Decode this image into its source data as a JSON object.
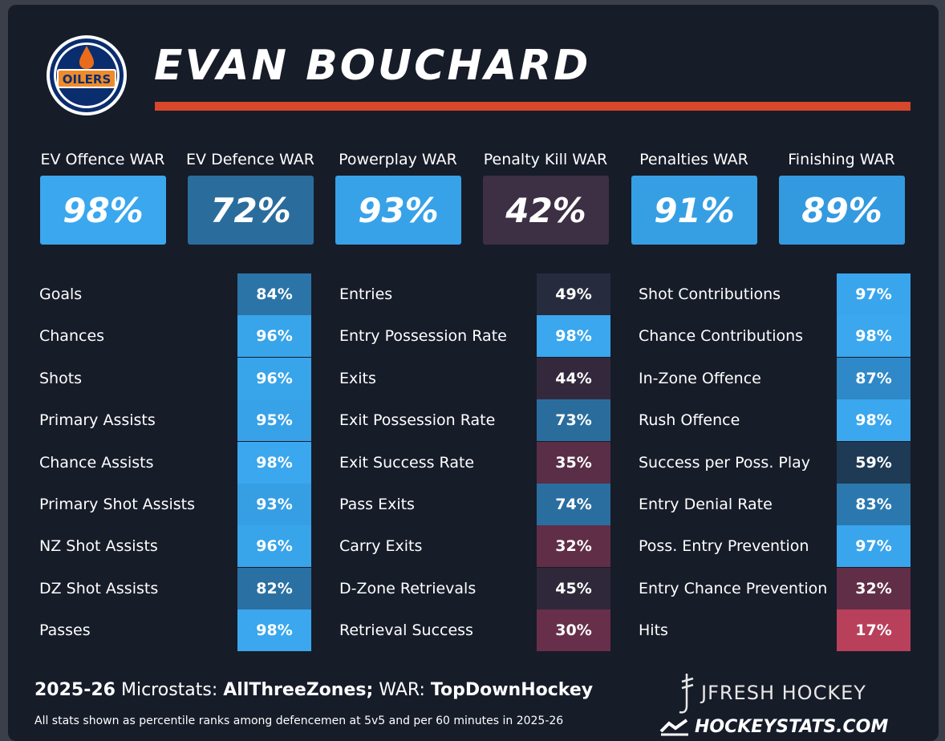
{
  "player": {
    "name": "EVAN BOUCHARD"
  },
  "team": {
    "logo_text": "OILERS"
  },
  "colors": {
    "accent_rule": "#d6472b",
    "scale_high": "#3aa7ee",
    "scale_high2": "#2f8fd0",
    "scale_mid": "#2a6d9c",
    "scale_midlow": "#1e3a55",
    "scale_neutral": "#262c3d",
    "scale_low": "#4a3044",
    "scale_lower": "#6a2e48",
    "scale_lowest": "#b8405b"
  },
  "war": [
    {
      "label": "EV Offence WAR",
      "value": "98%"
    },
    {
      "label": "EV Defence WAR",
      "value": "72%"
    },
    {
      "label": "Powerplay WAR",
      "value": "93%"
    },
    {
      "label": "Penalty Kill WAR",
      "value": "42%"
    },
    {
      "label": "Penalties WAR",
      "value": "91%"
    },
    {
      "label": "Finishing WAR",
      "value": "89%"
    }
  ],
  "columns": [
    {
      "stats": [
        {
          "label": "Goals",
          "value": "84%"
        },
        {
          "label": "Chances",
          "value": "96%"
        },
        {
          "label": "Shots",
          "value": "96%"
        },
        {
          "label": "Primary Assists",
          "value": "95%"
        },
        {
          "label": "Chance Assists",
          "value": "98%"
        },
        {
          "label": "Primary Shot Assists",
          "value": "93%"
        },
        {
          "label": "NZ Shot Assists",
          "value": "96%"
        },
        {
          "label": "DZ Shot Assists",
          "value": "82%"
        },
        {
          "label": "Passes",
          "value": "98%"
        }
      ]
    },
    {
      "stats": [
        {
          "label": "Entries",
          "value": "49%"
        },
        {
          "label": "Entry Possession Rate",
          "value": "98%"
        },
        {
          "label": "Exits",
          "value": "44%"
        },
        {
          "label": "Exit Possession Rate",
          "value": "73%"
        },
        {
          "label": "Exit Success Rate",
          "value": "35%"
        },
        {
          "label": "Pass Exits",
          "value": "74%"
        },
        {
          "label": "Carry Exits",
          "value": "32%"
        },
        {
          "label": "D-Zone Retrievals",
          "value": "45%"
        },
        {
          "label": "Retrieval Success",
          "value": "30%"
        }
      ]
    },
    {
      "stats": [
        {
          "label": "Shot Contributions",
          "value": "97%"
        },
        {
          "label": "Chance Contributions",
          "value": "98%"
        },
        {
          "label": "In-Zone Offence",
          "value": "87%"
        },
        {
          "label": "Rush Offence",
          "value": "98%"
        },
        {
          "label": "Success per Poss. Play",
          "value": "59%"
        },
        {
          "label": "Entry Denial Rate",
          "value": "83%"
        },
        {
          "label": "Poss. Entry Prevention",
          "value": "97%"
        },
        {
          "label": "Entry Chance Prevention",
          "value": "32%"
        },
        {
          "label": "Hits",
          "value": "17%"
        }
      ]
    }
  ],
  "footer": {
    "season": "2025-26",
    "microstats_label": "Microstats:",
    "microstats_source": "AllThreeZones;",
    "war_label": "WAR:",
    "war_source": "TopDownHockey",
    "note": "All stats shown as percentile ranks among defencemen at 5v5 and per 60 minutes in 2025-26",
    "brand_primary": "JFRESH HOCKEY",
    "brand_secondary": "HOCKEYSTATS.COM"
  }
}
